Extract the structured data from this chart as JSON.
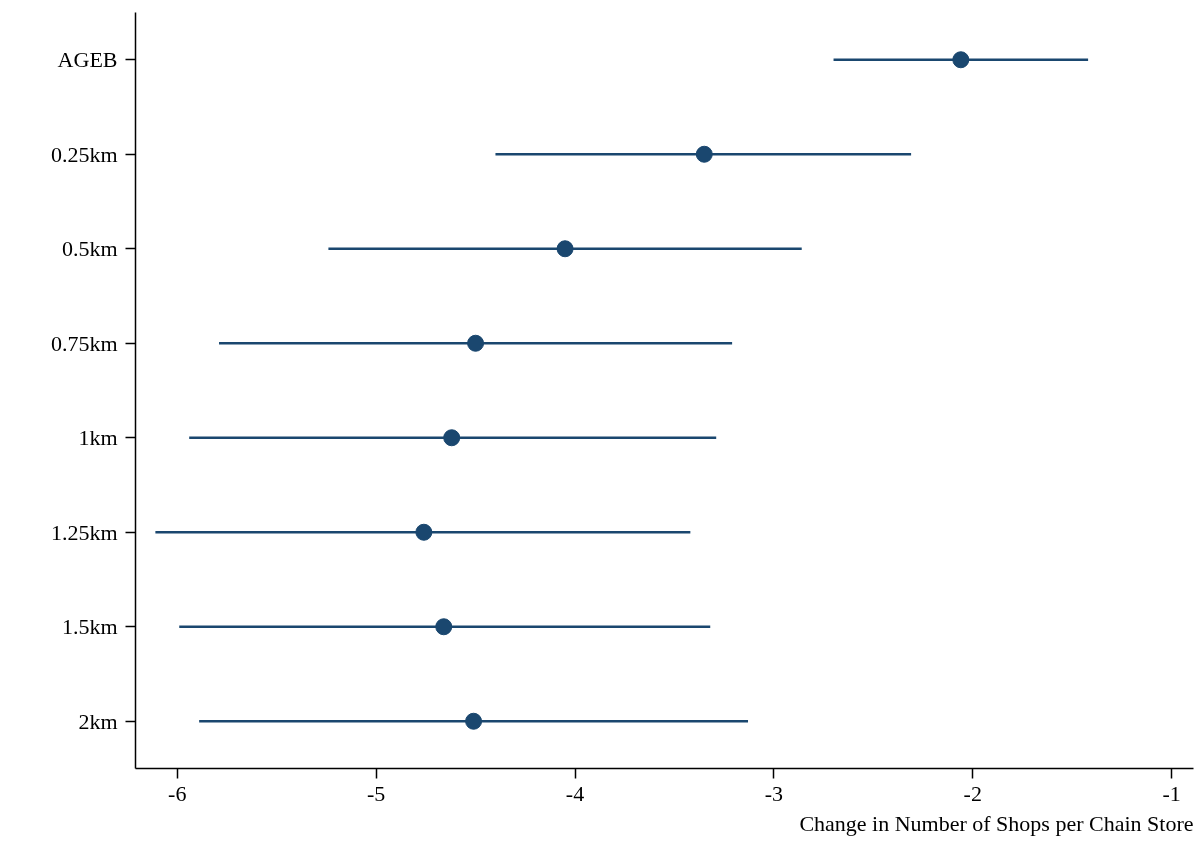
{
  "chart_data": {
    "type": "scatter",
    "orientation": "horizontal",
    "xlabel": "Change in Number of Shops per Chain Store",
    "categories": [
      "AGEB",
      "0.25km",
      "0.5km",
      "0.75km",
      "1km",
      "1.25km",
      "1.5km",
      "2km"
    ],
    "values": [
      -2.06,
      -3.35,
      -4.05,
      -4.5,
      -4.62,
      -4.76,
      -4.66,
      -4.51
    ],
    "errors": [
      [
        -2.7,
        -1.42
      ],
      [
        -4.4,
        -2.31
      ],
      [
        -5.24,
        -2.86
      ],
      [
        -5.79,
        -3.21
      ],
      [
        -5.94,
        -3.29
      ],
      [
        -6.11,
        -3.42
      ],
      [
        -5.99,
        -3.32
      ],
      [
        -5.89,
        -3.13
      ]
    ],
    "color": "#1a476f",
    "marker": "circle",
    "grid": false,
    "xlim": [
      -6.21,
      -0.89
    ],
    "xticks": [
      -6,
      -5,
      -4,
      -3,
      -2,
      -1
    ]
  }
}
